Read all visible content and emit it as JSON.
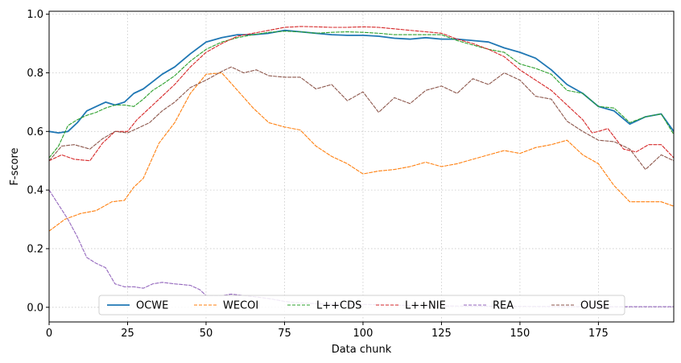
{
  "chart_data": {
    "type": "line",
    "title": "",
    "xlabel": "Data chunk",
    "ylabel": "F-score",
    "xlim": [
      0,
      199
    ],
    "ylim": [
      -0.05,
      1.01
    ],
    "xticks": [
      0,
      25,
      50,
      75,
      100,
      125,
      150,
      175
    ],
    "yticks": [
      0.0,
      0.2,
      0.4,
      0.6,
      0.8,
      1.0
    ],
    "xtick_labels": [
      "0",
      "25",
      "50",
      "75",
      "100",
      "125",
      "150",
      "175"
    ],
    "ytick_labels": [
      "0.0",
      "0.2",
      "0.4",
      "0.6",
      "0.8",
      "1.0"
    ],
    "grid": true,
    "legend_position": "bottom-center",
    "series": [
      {
        "name": "OCWE",
        "color": "#1f77b4",
        "style": "solid",
        "x": [
          0,
          3,
          6,
          9,
          12,
          15,
          18,
          21,
          24,
          27,
          30,
          33,
          36,
          40,
          45,
          50,
          55,
          60,
          65,
          70,
          75,
          80,
          85,
          90,
          95,
          100,
          105,
          110,
          115,
          120,
          125,
          130,
          135,
          140,
          145,
          150,
          155,
          160,
          165,
          170,
          175,
          180,
          185,
          190,
          195,
          199
        ],
        "y": [
          0.6,
          0.595,
          0.6,
          0.63,
          0.67,
          0.685,
          0.7,
          0.69,
          0.7,
          0.73,
          0.745,
          0.77,
          0.795,
          0.82,
          0.865,
          0.905,
          0.92,
          0.93,
          0.93,
          0.935,
          0.945,
          0.94,
          0.935,
          0.93,
          0.928,
          0.928,
          0.925,
          0.918,
          0.915,
          0.92,
          0.915,
          0.915,
          0.91,
          0.905,
          0.885,
          0.87,
          0.85,
          0.81,
          0.76,
          0.73,
          0.685,
          0.67,
          0.625,
          0.65,
          0.66,
          0.6
        ]
      },
      {
        "name": "WECOI",
        "color": "#ff7f0e",
        "style": "dashed",
        "x": [
          0,
          5,
          10,
          15,
          20,
          24,
          27,
          30,
          35,
          40,
          45,
          50,
          55,
          60,
          65,
          70,
          75,
          80,
          85,
          90,
          95,
          100,
          105,
          110,
          115,
          120,
          125,
          130,
          135,
          140,
          145,
          150,
          155,
          160,
          165,
          170,
          175,
          180,
          185,
          190,
          195,
          199
        ],
        "y": [
          0.26,
          0.3,
          0.32,
          0.33,
          0.36,
          0.365,
          0.41,
          0.44,
          0.56,
          0.63,
          0.73,
          0.795,
          0.8,
          0.74,
          0.68,
          0.63,
          0.615,
          0.605,
          0.55,
          0.515,
          0.49,
          0.455,
          0.465,
          0.47,
          0.48,
          0.495,
          0.48,
          0.49,
          0.505,
          0.52,
          0.535,
          0.525,
          0.545,
          0.555,
          0.57,
          0.52,
          0.49,
          0.415,
          0.36,
          0.36,
          0.36,
          0.345
        ]
      },
      {
        "name": "L++CDS",
        "color": "#2ca02c",
        "style": "dashed",
        "x": [
          0,
          3,
          6,
          9,
          12,
          15,
          18,
          21,
          24,
          27,
          30,
          33,
          36,
          40,
          45,
          50,
          55,
          60,
          65,
          70,
          75,
          80,
          85,
          90,
          95,
          100,
          105,
          110,
          115,
          120,
          125,
          130,
          135,
          140,
          145,
          150,
          155,
          160,
          165,
          170,
          175,
          180,
          185,
          190,
          195,
          199
        ],
        "y": [
          0.51,
          0.55,
          0.62,
          0.64,
          0.655,
          0.665,
          0.68,
          0.69,
          0.69,
          0.685,
          0.71,
          0.74,
          0.76,
          0.79,
          0.84,
          0.88,
          0.905,
          0.92,
          0.93,
          0.938,
          0.942,
          0.94,
          0.935,
          0.938,
          0.94,
          0.938,
          0.935,
          0.93,
          0.93,
          0.93,
          0.93,
          0.91,
          0.895,
          0.88,
          0.87,
          0.83,
          0.815,
          0.795,
          0.74,
          0.73,
          0.685,
          0.68,
          0.63,
          0.65,
          0.66,
          0.59
        ]
      },
      {
        "name": "L++NIE",
        "color": "#d62728",
        "style": "dashed",
        "x": [
          0,
          4,
          8,
          13,
          17,
          21,
          25,
          28,
          32,
          36,
          40,
          45,
          50,
          55,
          60,
          65,
          70,
          75,
          80,
          85,
          90,
          95,
          100,
          105,
          110,
          115,
          120,
          125,
          130,
          135,
          140,
          145,
          150,
          155,
          160,
          165,
          170,
          173,
          175,
          178,
          183,
          187,
          191,
          195,
          199
        ],
        "y": [
          0.5,
          0.52,
          0.505,
          0.5,
          0.56,
          0.6,
          0.6,
          0.64,
          0.68,
          0.72,
          0.76,
          0.82,
          0.87,
          0.9,
          0.925,
          0.935,
          0.945,
          0.955,
          0.958,
          0.957,
          0.955,
          0.955,
          0.957,
          0.955,
          0.95,
          0.945,
          0.94,
          0.935,
          0.915,
          0.9,
          0.88,
          0.855,
          0.81,
          0.775,
          0.74,
          0.69,
          0.64,
          0.595,
          0.6,
          0.61,
          0.54,
          0.53,
          0.555,
          0.555,
          0.51
        ]
      },
      {
        "name": "REA",
        "color": "#9467bd",
        "style": "dashed",
        "x": [
          0,
          3,
          6,
          9,
          12,
          15,
          18,
          21,
          24,
          27,
          30,
          33,
          36,
          40,
          45,
          48,
          50,
          55,
          58,
          62,
          66,
          70,
          75,
          80,
          90,
          100,
          120,
          150,
          175,
          199
        ],
        "y": [
          0.4,
          0.35,
          0.3,
          0.24,
          0.17,
          0.15,
          0.135,
          0.08,
          0.07,
          0.07,
          0.065,
          0.08,
          0.085,
          0.08,
          0.075,
          0.06,
          0.04,
          0.04,
          0.045,
          0.04,
          0.035,
          0.03,
          0.02,
          0.015,
          0.01,
          0.01,
          0.005,
          0.003,
          0.002,
          0.002
        ]
      },
      {
        "name": "OUSE",
        "color": "#8c564b",
        "style": "dashed",
        "x": [
          0,
          4,
          8,
          13,
          17,
          21,
          25,
          28,
          32,
          36,
          40,
          45,
          50,
          55,
          58,
          62,
          66,
          70,
          75,
          80,
          85,
          90,
          95,
          100,
          105,
          110,
          115,
          120,
          125,
          130,
          135,
          140,
          145,
          150,
          155,
          160,
          165,
          170,
          175,
          180,
          185,
          190,
          195,
          199
        ],
        "y": [
          0.5,
          0.55,
          0.555,
          0.54,
          0.575,
          0.6,
          0.595,
          0.61,
          0.63,
          0.67,
          0.7,
          0.75,
          0.775,
          0.805,
          0.82,
          0.8,
          0.81,
          0.79,
          0.785,
          0.785,
          0.745,
          0.76,
          0.705,
          0.735,
          0.665,
          0.715,
          0.695,
          0.74,
          0.755,
          0.73,
          0.78,
          0.76,
          0.8,
          0.775,
          0.72,
          0.71,
          0.635,
          0.6,
          0.57,
          0.565,
          0.54,
          0.47,
          0.52,
          0.5
        ]
      }
    ]
  }
}
